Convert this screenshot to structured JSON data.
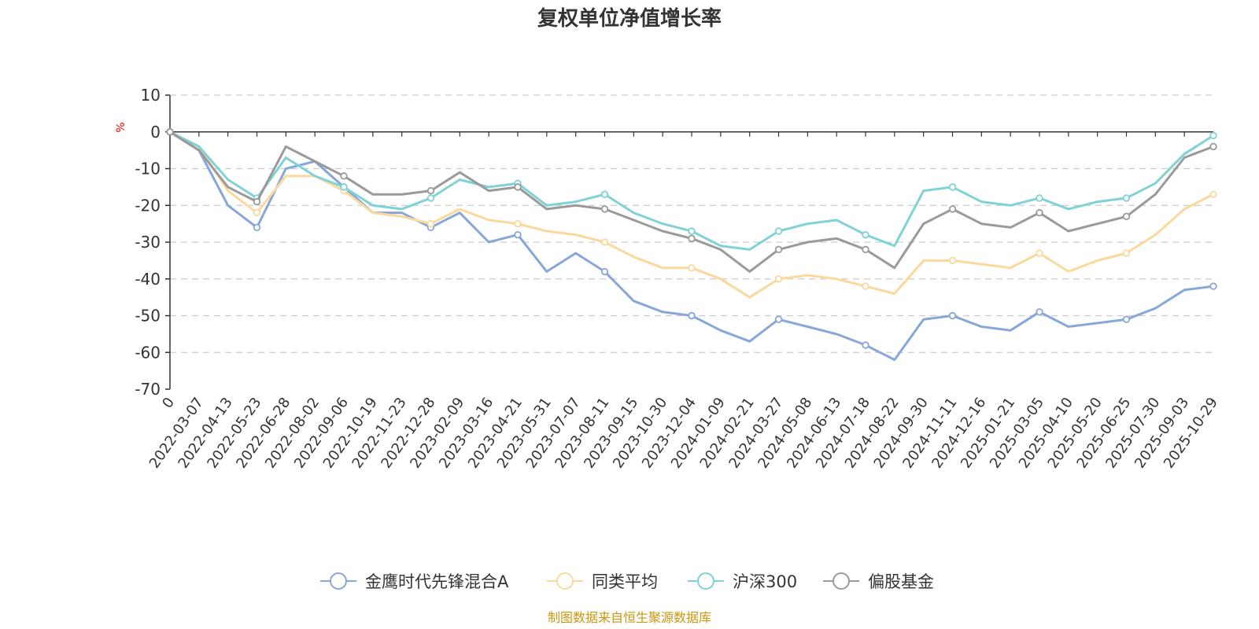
{
  "chart_data": {
    "type": "line",
    "title": "复权单位净值增长率",
    "ylabel": "%",
    "ylim": [
      -70,
      10
    ],
    "yticks": [
      10,
      0,
      -10,
      -20,
      -30,
      -40,
      -50,
      -60,
      -70
    ],
    "grid": true,
    "legend_position": "bottom-center",
    "categories": [
      "0",
      "2022-03-07",
      "2022-04-13",
      "2022-05-23",
      "2022-06-28",
      "2022-08-02",
      "2022-09-06",
      "2022-10-19",
      "2022-11-23",
      "2022-12-28",
      "2023-02-09",
      "2023-03-16",
      "2023-04-21",
      "2023-05-31",
      "2023-07-07",
      "2023-08-11",
      "2023-09-15",
      "2023-10-30",
      "2023-12-04",
      "2024-01-09",
      "2024-02-21",
      "2024-03-27",
      "2024-05-08",
      "2024-06-13",
      "2024-07-18",
      "2024-08-22",
      "2024-09-30",
      "2024-11-11",
      "2024-12-16",
      "2025-01-21",
      "2025-03-05",
      "2025-04-10",
      "2025-05-20",
      "2025-06-25",
      "2025-07-30",
      "2025-09-03",
      "2025-10-29"
    ],
    "series": [
      {
        "name": "金鹰时代先锋混合A",
        "color": "#87a6d9",
        "values": [
          0,
          -5,
          -20,
          -26,
          -10,
          -8,
          -15,
          -22,
          -22,
          -26,
          -22,
          -30,
          -28,
          -38,
          -33,
          -38,
          -46,
          -49,
          -50,
          -54,
          -57,
          -51,
          -53,
          -55,
          -58,
          -62,
          -51,
          -50,
          -53,
          -54,
          -49,
          -53,
          -52,
          -51,
          -48,
          -43,
          -42
        ]
      },
      {
        "name": "同类平均",
        "color": "#fbd89c",
        "values": [
          0,
          -4,
          -16,
          -22,
          -12,
          -12,
          -16,
          -22,
          -23,
          -25,
          -21,
          -24,
          -25,
          -27,
          -28,
          -30,
          -34,
          -37,
          -37,
          -40,
          -45,
          -40,
          -39,
          -40,
          -42,
          -44,
          -35,
          -35,
          -36,
          -37,
          -33,
          -38,
          -35,
          -33,
          -28,
          -21,
          -17
        ]
      },
      {
        "name": "沪深300",
        "color": "#7fd2d5",
        "values": [
          0,
          -4,
          -13,
          -18,
          -7,
          -12,
          -15,
          -20,
          -21,
          -18,
          -13,
          -15,
          -14,
          -20,
          -19,
          -17,
          -22,
          -25,
          -27,
          -31,
          -32,
          -27,
          -25,
          -24,
          -28,
          -31,
          -16,
          -15,
          -19,
          -20,
          -18,
          -21,
          -19,
          -18,
          -14,
          -6,
          -1
        ]
      },
      {
        "name": "偏股基金",
        "color": "#9a9a9a",
        "values": [
          0,
          -5,
          -15,
          -19,
          -4,
          -8,
          -12,
          -17,
          -17,
          -16,
          -11,
          -16,
          -15,
          -21,
          -20,
          -21,
          -24,
          -27,
          -29,
          -32,
          -38,
          -32,
          -30,
          -29,
          -32,
          -37,
          -25,
          -21,
          -25,
          -26,
          -22,
          -27,
          -25,
          -23,
          -17,
          -7,
          -4
        ]
      }
    ]
  },
  "source_text": "制图数据来自恒生聚源数据库"
}
